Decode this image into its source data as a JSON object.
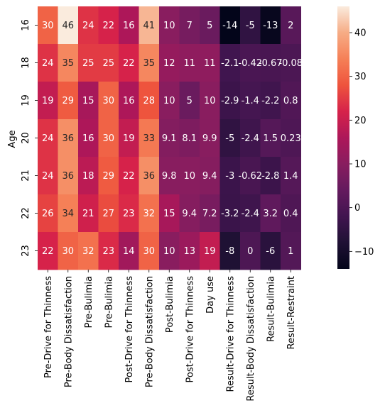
{
  "chart_data": {
    "type": "heatmap",
    "title": "",
    "xlabel": "",
    "ylabel": "Age",
    "x_categories": [
      "Pre-Drive for Thinness",
      "Pre-Body Dissatisfaction",
      "Pre-Bulimia",
      "Pre-Bulimia",
      "Post-Drive for Thinness",
      "Pre-Body Dissatisfaction",
      "Post-Bulimia",
      "Post-Drive for Thinness",
      "Day use",
      "Result-Drive for Thinness",
      "Result-Body Dissatisfaction",
      "Result-Bulimia",
      "Result-Restraint"
    ],
    "y_categories": [
      "16",
      "18",
      "19",
      "20",
      "21",
      "22",
      "23"
    ],
    "values": [
      [
        30,
        46,
        24,
        22,
        16,
        41,
        10,
        7,
        5,
        -14,
        -5,
        -13,
        2
      ],
      [
        24,
        35,
        25,
        25,
        22,
        35,
        12,
        11,
        11,
        -2.1,
        -0.42,
        -0.67,
        -0.08
      ],
      [
        19,
        29,
        15,
        30,
        16,
        28,
        10,
        5,
        10,
        -2.9,
        -1.4,
        -2.2,
        0.8
      ],
      [
        24,
        36,
        16,
        30,
        19,
        33,
        9.1,
        8.1,
        9.9,
        -5,
        -2.4,
        1.5,
        0.23
      ],
      [
        24,
        36,
        18,
        29,
        22,
        36,
        9.8,
        10,
        9.4,
        -3,
        -0.62,
        -2.8,
        1.4
      ],
      [
        26,
        34,
        21,
        27,
        23,
        32,
        15,
        9.4,
        7.2,
        -3.2,
        -2.4,
        3.2,
        0.4
      ],
      [
        22,
        30,
        32,
        23,
        14,
        30,
        10,
        13,
        19,
        -8,
        0,
        -6,
        1
      ]
    ],
    "value_labels": [
      [
        "30",
        "46",
        "24",
        "22",
        "16",
        "41",
        "10",
        "7",
        "5",
        "-14",
        "-5",
        "-13",
        "2"
      ],
      [
        "24",
        "35",
        "25",
        "25",
        "22",
        "35",
        "12",
        "11",
        "11",
        "-2.1",
        "-0.42",
        "-0.67",
        "-0.08"
      ],
      [
        "19",
        "29",
        "15",
        "30",
        "16",
        "28",
        "10",
        "5",
        "10",
        "-2.9",
        "-1.4",
        "-2.2",
        "0.8"
      ],
      [
        "24",
        "36",
        "16",
        "30",
        "19",
        "33",
        "9.1",
        "8.1",
        "9.9",
        "-5",
        "-2.4",
        "1.5",
        "0.23"
      ],
      [
        "24",
        "36",
        "18",
        "29",
        "22",
        "36",
        "9.8",
        "10",
        "9.4",
        "-3",
        "-0.62",
        "-2.8",
        "1.4"
      ],
      [
        "26",
        "34",
        "21",
        "27",
        "23",
        "32",
        "15",
        "9.4",
        "7.2",
        "-3.2",
        "-2.4",
        "3.2",
        "0.4"
      ],
      [
        "22",
        "30",
        "32",
        "23",
        "14",
        "30",
        "10",
        "13",
        "19",
        "-8",
        "0",
        "-6",
        "1"
      ]
    ],
    "colormap": "rocket",
    "vmin": -14,
    "vmax": 46,
    "colorbar": {
      "ticks": [
        -10,
        0,
        10,
        20,
        30,
        40
      ],
      "tick_labels": [
        "−10",
        "0",
        "10",
        "20",
        "30",
        "40"
      ],
      "placement": "right"
    },
    "grid": false
  }
}
